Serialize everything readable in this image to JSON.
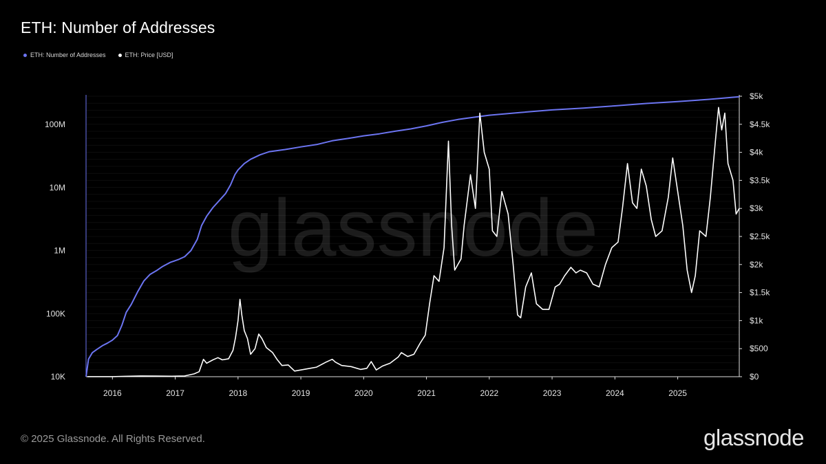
{
  "header": {
    "title": "ETH: Number of Addresses"
  },
  "legend": {
    "items": [
      {
        "label": "ETH: Number of Addresses",
        "color": "#6c75f2"
      },
      {
        "label": "ETH: Price [USD]",
        "color": "#ffffff"
      }
    ],
    "placement": "top-left"
  },
  "watermark": "glassnode",
  "footer": {
    "copyright": "© 2025 Glassnode. All Rights Reserved.",
    "brand": "glassnode"
  },
  "chart_data": {
    "type": "line",
    "title": "ETH: Number of Addresses",
    "grid": true,
    "x_ticks": [
      "2016",
      "2017",
      "2018",
      "2019",
      "2020",
      "2021",
      "2022",
      "2023",
      "2024",
      "2025"
    ],
    "x_range": [
      2015.58,
      2025.98
    ],
    "y_left": {
      "scale": "log",
      "range": [
        10000,
        280000000
      ],
      "ticks": [
        10000,
        100000,
        1000000,
        10000000,
        100000000
      ],
      "tick_labels": [
        "10K",
        "100K",
        "1M",
        "10M",
        "100M"
      ]
    },
    "y_right": {
      "scale": "linear",
      "range": [
        0,
        5000
      ],
      "ticks": [
        0,
        500,
        1000,
        1500,
        2000,
        2500,
        3000,
        3500,
        4000,
        4500,
        5000
      ],
      "tick_labels": [
        "$0",
        "$500",
        "$1k",
        "$1.5k",
        "$2k",
        "$2.5k",
        "$3k",
        "$3.5k",
        "$4k",
        "$4.5k",
        "$5k"
      ]
    },
    "series": [
      {
        "name": "ETH: Number of Addresses",
        "axis": "left",
        "color": "#6c75f2",
        "points": [
          [
            "2015.58",
            10000
          ],
          [
            "2015.62",
            19000
          ],
          [
            "2015.68",
            24000
          ],
          [
            "2015.75",
            27000
          ],
          [
            "2015.84",
            31000
          ],
          [
            "2015.92",
            34000
          ],
          [
            "2016.0",
            38000
          ],
          [
            "2016.08",
            45000
          ],
          [
            "2016.15",
            65000
          ],
          [
            "2016.22",
            105000
          ],
          [
            "2016.3",
            140000
          ],
          [
            "2016.4",
            220000
          ],
          [
            "2016.5",
            330000
          ],
          [
            "2016.6",
            420000
          ],
          [
            "2016.7",
            480000
          ],
          [
            "2016.8",
            560000
          ],
          [
            "2016.92",
            650000
          ],
          [
            "2017.05",
            720000
          ],
          [
            "2017.15",
            800000
          ],
          [
            "2017.25",
            1000000
          ],
          [
            "2017.35",
            1500000
          ],
          [
            "2017.42",
            2500000
          ],
          [
            "2017.5",
            3500000
          ],
          [
            "2017.6",
            4800000
          ],
          [
            "2017.7",
            6200000
          ],
          [
            "2017.8",
            8000000
          ],
          [
            "2017.88",
            11000000
          ],
          [
            "2017.95",
            16000000
          ],
          [
            "2018.0",
            19000000
          ],
          [
            "2018.1",
            24000000
          ],
          [
            "2018.2",
            28000000
          ],
          [
            "2018.35",
            33000000
          ],
          [
            "2018.5",
            37000000
          ],
          [
            "2018.75",
            40000000
          ],
          [
            "2019.0",
            44000000
          ],
          [
            "2019.25",
            48000000
          ],
          [
            "2019.5",
            55000000
          ],
          [
            "2019.75",
            60000000
          ],
          [
            "2020.0",
            66000000
          ],
          [
            "2020.25",
            71000000
          ],
          [
            "2020.5",
            78000000
          ],
          [
            "2020.75",
            85000000
          ],
          [
            "2021.0",
            95000000
          ],
          [
            "2021.25",
            108000000
          ],
          [
            "2021.5",
            120000000
          ],
          [
            "2021.75",
            130000000
          ],
          [
            "2022.0",
            140000000
          ],
          [
            "2022.5",
            155000000
          ],
          [
            "2023.0",
            170000000
          ],
          [
            "2023.5",
            182000000
          ],
          [
            "2024.0",
            197000000
          ],
          [
            "2024.5",
            215000000
          ],
          [
            "2025.0",
            230000000
          ],
          [
            "2025.5",
            250000000
          ],
          [
            "2025.98",
            275000000
          ]
        ]
      },
      {
        "name": "ETH: Price [USD]",
        "axis": "right",
        "color": "#ffffff",
        "points": [
          [
            "2015.6",
            1
          ],
          [
            "2016.0",
            1
          ],
          [
            "2016.2",
            7
          ],
          [
            "2016.45",
            14
          ],
          [
            "2016.7",
            12
          ],
          [
            "2016.95",
            9
          ],
          [
            "2017.15",
            13
          ],
          [
            "2017.3",
            50
          ],
          [
            "2017.38",
            90
          ],
          [
            "2017.45",
            310
          ],
          [
            "2017.5",
            240
          ],
          [
            "2017.6",
            300
          ],
          [
            "2017.68",
            340
          ],
          [
            "2017.75",
            300
          ],
          [
            "2017.85",
            320
          ],
          [
            "2017.92",
            470
          ],
          [
            "2017.96",
            700
          ],
          [
            "2018.0",
            1000
          ],
          [
            "2018.03",
            1380
          ],
          [
            "2018.06",
            1100
          ],
          [
            "2018.1",
            820
          ],
          [
            "2018.15",
            680
          ],
          [
            "2018.2",
            400
          ],
          [
            "2018.27",
            500
          ],
          [
            "2018.33",
            760
          ],
          [
            "2018.38",
            680
          ],
          [
            "2018.45",
            520
          ],
          [
            "2018.55",
            430
          ],
          [
            "2018.62",
            310
          ],
          [
            "2018.7",
            200
          ],
          [
            "2018.8",
            210
          ],
          [
            "2018.9",
            100
          ],
          [
            "2019.0",
            120
          ],
          [
            "2019.1",
            140
          ],
          [
            "2019.25",
            170
          ],
          [
            "2019.4",
            260
          ],
          [
            "2019.5",
            310
          ],
          [
            "2019.55",
            260
          ],
          [
            "2019.65",
            200
          ],
          [
            "2019.8",
            180
          ],
          [
            "2019.95",
            130
          ],
          [
            "2020.05",
            150
          ],
          [
            "2020.12",
            270
          ],
          [
            "2020.2",
            120
          ],
          [
            "2020.3",
            190
          ],
          [
            "2020.42",
            240
          ],
          [
            "2020.55",
            350
          ],
          [
            "2020.6",
            430
          ],
          [
            "2020.7",
            360
          ],
          [
            "2020.8",
            400
          ],
          [
            "2020.9",
            600
          ],
          [
            "2020.98",
            740
          ],
          [
            "2021.05",
            1300
          ],
          [
            "2021.12",
            1800
          ],
          [
            "2021.2",
            1700
          ],
          [
            "2021.28",
            2300
          ],
          [
            "2021.35",
            4200
          ],
          [
            "2021.4",
            2700
          ],
          [
            "2021.45",
            1900
          ],
          [
            "2021.55",
            2100
          ],
          [
            "2021.6",
            2700
          ],
          [
            "2021.7",
            3600
          ],
          [
            "2021.78",
            3000
          ],
          [
            "2021.85",
            4700
          ],
          [
            "2021.92",
            4000
          ],
          [
            "2022.0",
            3700
          ],
          [
            "2022.05",
            2600
          ],
          [
            "2022.12",
            2500
          ],
          [
            "2022.2",
            3300
          ],
          [
            "2022.3",
            2900
          ],
          [
            "2022.38",
            2000
          ],
          [
            "2022.45",
            1100
          ],
          [
            "2022.5",
            1050
          ],
          [
            "2022.58",
            1600
          ],
          [
            "2022.67",
            1850
          ],
          [
            "2022.75",
            1300
          ],
          [
            "2022.85",
            1200
          ],
          [
            "2022.95",
            1200
          ],
          [
            "2023.05",
            1600
          ],
          [
            "2023.12",
            1650
          ],
          [
            "2023.2",
            1800
          ],
          [
            "2023.3",
            1950
          ],
          [
            "2023.38",
            1850
          ],
          [
            "2023.45",
            1900
          ],
          [
            "2023.55",
            1850
          ],
          [
            "2023.65",
            1650
          ],
          [
            "2023.75",
            1600
          ],
          [
            "2023.85",
            2000
          ],
          [
            "2023.95",
            2300
          ],
          [
            "2024.05",
            2400
          ],
          [
            "2024.12",
            3000
          ],
          [
            "2024.2",
            3800
          ],
          [
            "2024.28",
            3100
          ],
          [
            "2024.35",
            3000
          ],
          [
            "2024.42",
            3700
          ],
          [
            "2024.5",
            3400
          ],
          [
            "2024.58",
            2800
          ],
          [
            "2024.65",
            2500
          ],
          [
            "2024.75",
            2600
          ],
          [
            "2024.85",
            3200
          ],
          [
            "2024.92",
            3900
          ],
          [
            "2025.0",
            3300
          ],
          [
            "2025.08",
            2700
          ],
          [
            "2025.15",
            1900
          ],
          [
            "2025.22",
            1500
          ],
          [
            "2025.28",
            1800
          ],
          [
            "2025.35",
            2600
          ],
          [
            "2025.45",
            2500
          ],
          [
            "2025.52",
            3200
          ],
          [
            "2025.6",
            4200
          ],
          [
            "2025.65",
            4800
          ],
          [
            "2025.7",
            4400
          ],
          [
            "2025.75",
            4700
          ],
          [
            "2025.8",
            3800
          ],
          [
            "2025.88",
            3500
          ],
          [
            "2025.93",
            2900
          ],
          [
            "2025.98",
            3000
          ]
        ]
      }
    ]
  }
}
